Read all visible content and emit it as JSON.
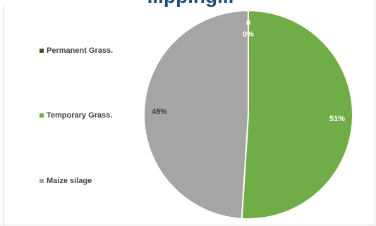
{
  "chart_data": {
    "type": "pie",
    "title": "...pping...",
    "categories": [
      "Permanent Grass.",
      "Temporary Grass.",
      "Maize silage"
    ],
    "values": [
      0,
      51,
      49
    ],
    "data_labels": [
      "0%",
      "51%",
      "49%"
    ],
    "value_label_top": "0",
    "colors": [
      "#375623",
      "#70ad47",
      "#a5a5a5"
    ],
    "legend": "left"
  }
}
